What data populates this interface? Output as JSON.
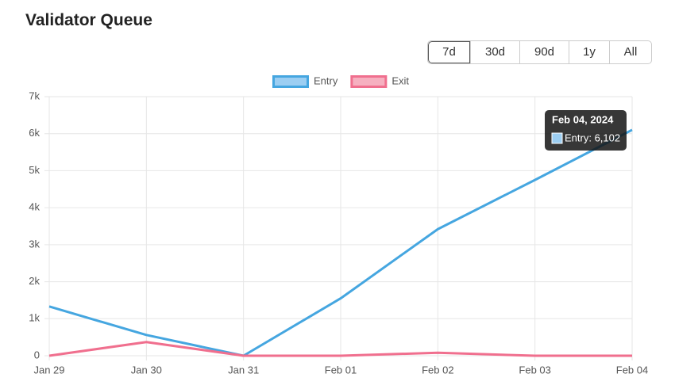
{
  "header": {
    "title": "Validator Queue"
  },
  "ranges": [
    "7d",
    "30d",
    "90d",
    "1y",
    "All"
  ],
  "selected_range": "7d",
  "chart_data": {
    "type": "line",
    "categories": [
      "Jan 29",
      "Jan 30",
      "Jan 31",
      "Feb 01",
      "Feb 02",
      "Feb 03",
      "Feb 04"
    ],
    "series": [
      {
        "name": "Entry",
        "color": "#45a6e0",
        "fill": "#9ccef2",
        "values": [
          1330,
          560,
          0,
          1550,
          3420,
          4750,
          6102
        ]
      },
      {
        "name": "Exit",
        "color": "#f06f8e",
        "fill": "#f6b0c0",
        "values": [
          0,
          370,
          0,
          0,
          80,
          0,
          0
        ]
      }
    ],
    "ylim": [
      0,
      7000
    ],
    "yticks": [
      0,
      {
        "value": 1000,
        "label": "1k"
      },
      {
        "value": 2000,
        "label": "2k"
      },
      {
        "value": 3000,
        "label": "3k"
      },
      {
        "value": 4000,
        "label": "4k"
      },
      {
        "value": 5000,
        "label": "5k"
      },
      {
        "value": 6000,
        "label": "6k"
      },
      {
        "value": 7000,
        "label": "7k"
      }
    ],
    "grid": true,
    "legend": "top",
    "tooltip": {
      "title": "Feb 04, 2024",
      "text": "Entry: 6,102"
    }
  }
}
